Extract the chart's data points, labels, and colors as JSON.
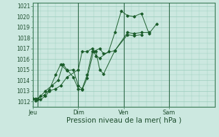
{
  "xlabel": "Pression niveau de la mer( hPa )",
  "xlabel_fontsize": 7.5,
  "ylim": [
    1011.5,
    1021.3
  ],
  "background_color": "#cce8e0",
  "grid_color": "#99ccbb",
  "line_color": "#1a5c2a",
  "fig_bg": "#cce8e0",
  "xtick_labels": [
    "Jeu",
    "Dim",
    "Ven",
    "Sam"
  ],
  "xtick_positions": [
    0,
    36,
    72,
    108
  ],
  "ytick_positions": [
    1012,
    1013,
    1014,
    1015,
    1016,
    1017,
    1018,
    1019,
    1020,
    1021
  ],
  "vline_positions": [
    4,
    36,
    72,
    108
  ],
  "total_points": 144,
  "series": [
    {
      "x": [
        0,
        2,
        4,
        6,
        10,
        13,
        18,
        22,
        27,
        36,
        39,
        43,
        47,
        50,
        53,
        60,
        65,
        70,
        75,
        80,
        86,
        92,
        98
      ],
      "y": [
        1012.3,
        1012.25,
        1012.2,
        1012.2,
        1012.5,
        1013.0,
        1013.2,
        1013.5,
        1014.3,
        1015.0,
        1016.7,
        1016.7,
        1017.0,
        1016.3,
        1016.1,
        1016.7,
        1018.5,
        1020.5,
        1020.1,
        1020.0,
        1020.3,
        1018.4,
        1019.3
      ]
    },
    {
      "x": [
        0,
        2,
        4,
        9,
        13,
        18,
        22,
        27,
        32,
        36,
        39,
        43,
        47,
        50,
        53,
        56,
        65,
        75,
        80,
        86,
        92
      ],
      "y": [
        1012.3,
        1012.1,
        1012.3,
        1012.6,
        1013.1,
        1014.5,
        1015.5,
        1014.9,
        1015.0,
        1013.5,
        1013.2,
        1014.5,
        1016.7,
        1016.7,
        1015.0,
        1014.6,
        1016.8,
        1018.5,
        1018.4,
        1018.5,
        1018.5
      ]
    },
    {
      "x": [
        0,
        3,
        6,
        10,
        15,
        20,
        24,
        27,
        32,
        36,
        39,
        43,
        48,
        53,
        56,
        65,
        75,
        80,
        86
      ],
      "y": [
        1012.3,
        1012.2,
        1012.5,
        1013.0,
        1013.5,
        1014.0,
        1015.5,
        1015.0,
        1014.3,
        1013.2,
        1013.1,
        1014.2,
        1016.7,
        1017.0,
        1016.5,
        1016.8,
        1018.3,
        1018.2,
        1018.3
      ]
    }
  ]
}
